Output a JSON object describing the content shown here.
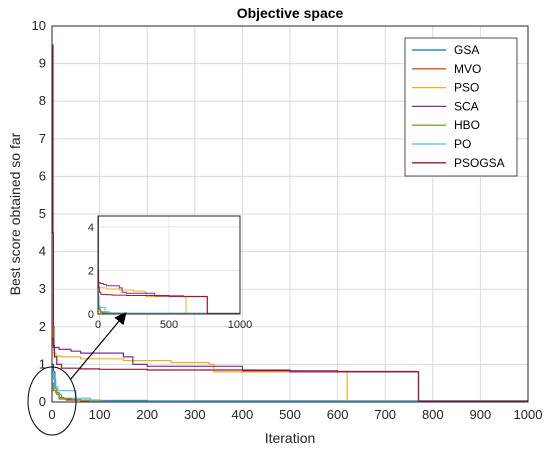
{
  "chart_data": {
    "type": "line",
    "title": "Objective space",
    "xlabel": "Iteration",
    "ylabel": "Best score obtained so far",
    "xlim": [
      0,
      1000
    ],
    "ylim": [
      0,
      10
    ],
    "xticks": [
      0,
      100,
      200,
      300,
      400,
      500,
      600,
      700,
      800,
      900,
      1000
    ],
    "yticks": [
      0,
      1,
      2,
      3,
      4,
      5,
      6,
      7,
      8,
      9,
      10
    ],
    "grid": true,
    "legend_position": "top-right",
    "series": [
      {
        "name": "GSA",
        "color": "#0072BD",
        "x": [
          1,
          3,
          6,
          10,
          15,
          25,
          40,
          60,
          100,
          200,
          1000
        ],
        "y": [
          1.0,
          0.8,
          0.35,
          0.2,
          0.12,
          0.08,
          0.06,
          0.05,
          0.04,
          0.03,
          0.03
        ]
      },
      {
        "name": "MVO",
        "color": "#D95319",
        "x": [
          1,
          3,
          8,
          15,
          30,
          60,
          120,
          300,
          1000
        ],
        "y": [
          0.5,
          0.3,
          0.25,
          0.08,
          0.05,
          0.03,
          0.02,
          0.02,
          0.02
        ]
      },
      {
        "name": "PSO",
        "color": "#EDB120",
        "x": [
          1,
          2,
          4,
          8,
          20,
          60,
          150,
          200,
          250,
          330,
          340,
          450,
          620,
          1000
        ],
        "y": [
          2.0,
          1.5,
          1.3,
          1.22,
          1.2,
          1.15,
          1.1,
          1.1,
          1.05,
          1.0,
          0.8,
          0.8,
          0.02,
          0.02
        ]
      },
      {
        "name": "SCA",
        "color": "#7E2F8E",
        "x": [
          1,
          3,
          15,
          30,
          40,
          60,
          100,
          150,
          170,
          200,
          250,
          400,
          500,
          765,
          770,
          900,
          1000
        ],
        "y": [
          1.7,
          1.45,
          1.4,
          1.4,
          1.35,
          1.3,
          1.3,
          1.2,
          1.0,
          0.95,
          0.95,
          0.85,
          0.8,
          0.8,
          0.02,
          0.01,
          0.01
        ]
      },
      {
        "name": "HBO",
        "color": "#77AC30",
        "x": [
          1,
          3,
          10,
          20,
          50,
          100,
          300,
          1000
        ],
        "y": [
          0.5,
          0.35,
          0.2,
          0.1,
          0.05,
          0.02,
          0.01,
          0.01
        ]
      },
      {
        "name": "PO",
        "color": "#4DBEEE",
        "x": [
          1,
          3,
          8,
          12,
          20,
          40,
          50,
          80,
          1000
        ],
        "y": [
          0.8,
          0.6,
          0.4,
          0.3,
          0.3,
          0.3,
          0.1,
          0.02,
          0.02
        ]
      },
      {
        "name": "PSOGSA",
        "color": "#A2142F",
        "x": [
          1,
          2,
          3,
          4,
          5,
          10,
          20,
          60,
          100,
          200,
          400,
          600,
          765,
          770,
          1000
        ],
        "y": [
          9.5,
          4.5,
          2.0,
          1.5,
          1.2,
          1.0,
          0.9,
          0.88,
          0.87,
          0.85,
          0.83,
          0.81,
          0.8,
          0.02,
          0.02
        ]
      }
    ],
    "inset": {
      "xlim": [
        0,
        1000
      ],
      "ylim": [
        0,
        4.5
      ],
      "xticks": [
        0,
        500,
        1000
      ],
      "yticks": [
        0,
        2,
        4
      ]
    }
  }
}
